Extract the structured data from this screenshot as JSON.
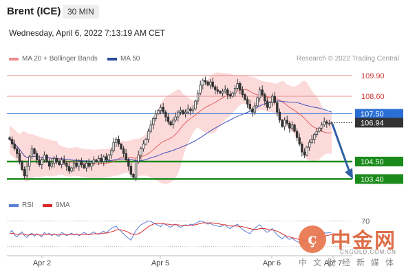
{
  "header": {
    "instrument": "Brent (ICE)",
    "timeframe": "30 MIN",
    "datetime": "Wednesday, April 6, 2022 7:13:19 AM CET"
  },
  "legend": {
    "ma20_label": "MA 20 + Bollinger Bands",
    "ma50_label": "MA 50",
    "rsi_label": "RSI",
    "ma9_label": "9MA",
    "credit": "Research © 2022 Trading Central"
  },
  "colors": {
    "candle": "#333333",
    "ma20": "#e36060",
    "bollinger_fill": "#fbd3d3",
    "ma50": "#3f4fb8",
    "resistance": "#e89090",
    "pivot": "#2b6fd6",
    "support": "#1a8a1a",
    "arrow": "#2f5fa6",
    "rsi": "#5b7fd6",
    "ma9": "#d92a2a"
  },
  "watermark": {
    "logo_glyph": "ç",
    "name_cn": "中金网",
    "url": "CNGOLD.COM.CN",
    "tagline_cn": "中文财经新媒体"
  },
  "chart_data": [
    {
      "type": "candlestick",
      "x_ticks": [
        "Apr 2",
        "Apr 5",
        "Apr 6",
        "Apr 7"
      ],
      "ylim": [
        102.9,
        110.5
      ],
      "grid": false,
      "legend_placement": "top-left",
      "levels": [
        {
          "value": 109.9,
          "label": "109.90",
          "role": "resistance"
        },
        {
          "value": 108.6,
          "label": "108.60",
          "role": "resistance"
        },
        {
          "value": 107.5,
          "label": "107.50",
          "role": "pivot"
        },
        {
          "value": 104.5,
          "label": "104.50",
          "role": "support"
        },
        {
          "value": 103.4,
          "label": "103.40",
          "role": "support"
        }
      ],
      "last_price": {
        "value": 106.94,
        "label": "106.94"
      },
      "forecast_arrow": {
        "from": 106.94,
        "to": 103.4
      },
      "closes": [
        105.9,
        105.6,
        105.3,
        105.0,
        104.5,
        104.0,
        103.6,
        104.2,
        104.8,
        105.3,
        105.0,
        104.6,
        104.3,
        104.6,
        104.9,
        104.5,
        104.2,
        104.4,
        104.7,
        104.5,
        104.3,
        104.6,
        104.4,
        104.2,
        103.9,
        104.1,
        104.4,
        104.2,
        104.5,
        104.3,
        104.1,
        104.4,
        104.2,
        104.4,
        104.6,
        104.5,
        104.7,
        104.5,
        104.8,
        104.6,
        104.9,
        105.2,
        105.7,
        105.9,
        105.6,
        105.3,
        105.0,
        104.6,
        104.2,
        103.7,
        103.5,
        104.5,
        104.9,
        105.3,
        105.6,
        105.9,
        106.4,
        106.8,
        107.2,
        107.5,
        107.7,
        107.9,
        107.6,
        107.3,
        107.0,
        106.8,
        107.1,
        107.3,
        107.6,
        107.7,
        107.5,
        107.6,
        107.8,
        107.7,
        107.8,
        108.3,
        108.8,
        109.3,
        109.6,
        109.5,
        109.3,
        109.5,
        109.2,
        109.0,
        108.9,
        108.8,
        108.9,
        109.0,
        108.7,
        108.6,
        108.8,
        109.1,
        109.4,
        109.0,
        108.7,
        108.4,
        108.1,
        107.8,
        107.6,
        108.0,
        108.5,
        109.0,
        108.7,
        108.3,
        107.9,
        108.2,
        108.6,
        108.2,
        107.6,
        107.1,
        106.7,
        107.1,
        106.9,
        106.6,
        106.8,
        106.4,
        106.0,
        105.6,
        105.1,
        104.9,
        105.4,
        105.7,
        105.9,
        106.2,
        106.4,
        106.6,
        106.8,
        107.0,
        106.9,
        106.9,
        106.94
      ],
      "rsi_reference": {
        "value": 70,
        "label": "70"
      },
      "rsi": [
        52,
        55,
        48,
        45,
        50,
        53,
        47,
        44,
        49,
        51,
        46,
        50,
        48,
        45,
        52,
        49,
        51,
        47,
        50,
        48,
        46,
        52,
        50,
        47,
        49,
        51,
        48,
        50,
        47,
        49,
        52,
        50,
        48,
        51,
        53,
        50,
        49,
        52,
        54,
        51,
        55,
        58,
        60,
        62,
        57,
        54,
        50,
        46,
        43,
        40,
        48,
        55,
        60,
        64,
        66,
        68,
        70,
        69,
        67,
        65,
        63,
        61,
        66,
        64,
        62,
        60,
        63,
        65,
        62,
        60,
        62,
        64,
        63,
        65,
        64,
        66,
        68,
        70,
        69,
        67,
        65,
        66,
        64,
        63,
        62,
        61,
        63,
        64,
        60,
        58,
        61,
        63,
        65,
        60,
        57,
        54,
        52,
        50,
        55,
        58,
        62,
        64,
        59,
        55,
        52,
        55,
        58,
        53,
        48,
        45,
        42,
        46,
        44,
        41,
        43,
        40,
        38,
        36,
        34,
        37,
        40,
        43,
        45,
        47,
        48,
        50,
        51,
        52,
        51,
        52,
        52
      ],
      "ma9": [
        50,
        51,
        50,
        49,
        49,
        50,
        49,
        48,
        48,
        49,
        49,
        49,
        48,
        48,
        49,
        49,
        49,
        49,
        49,
        49,
        49,
        49,
        49,
        49,
        49,
        49,
        49,
        49,
        49,
        49,
        49,
        49,
        49,
        49,
        50,
        50,
        50,
        50,
        51,
        51,
        52,
        53,
        54,
        56,
        56,
        56,
        55,
        54,
        52,
        50,
        49,
        49,
        50,
        52,
        55,
        58,
        61,
        63,
        65,
        66,
        66,
        66,
        66,
        65,
        65,
        64,
        64,
        64,
        64,
        63,
        63,
        63,
        63,
        63,
        63,
        64,
        65,
        66,
        67,
        67,
        67,
        67,
        67,
        66,
        66,
        65,
        64,
        64,
        63,
        62,
        62,
        62,
        62,
        61,
        61,
        60,
        59,
        58,
        57,
        57,
        57,
        58,
        58,
        58,
        57,
        56,
        56,
        55,
        54,
        52,
        50,
        48,
        46,
        45,
        44,
        43,
        42,
        41,
        40,
        39,
        39,
        40,
        41,
        42,
        43,
        44,
        45,
        46,
        47,
        48,
        49
      ]
    }
  ]
}
